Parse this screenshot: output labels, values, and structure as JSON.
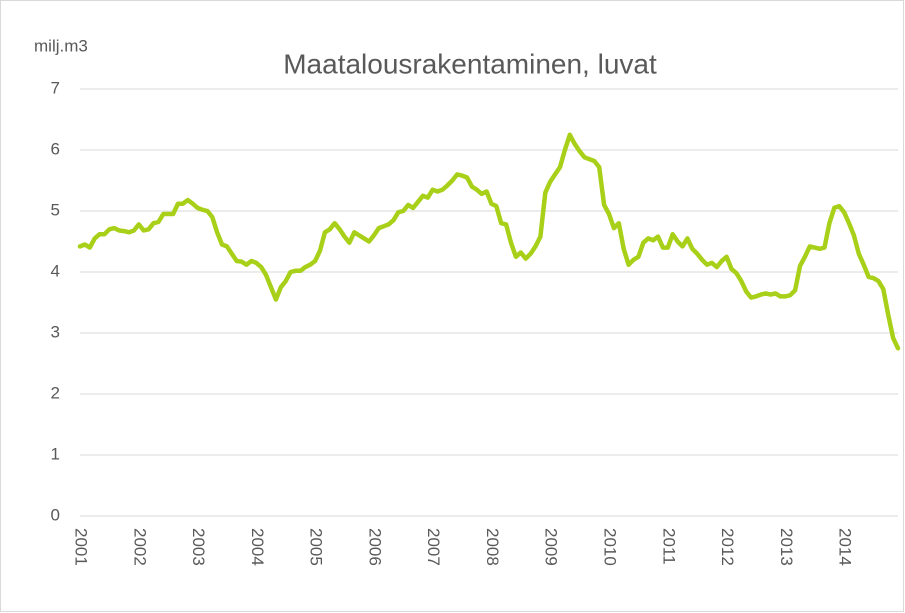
{
  "chart_data": {
    "type": "line",
    "title": "Maatalousrakentaminen, luvat",
    "y_label": "milj.m3",
    "categories": [
      "2001",
      null,
      null,
      null,
      null,
      null,
      null,
      null,
      null,
      null,
      null,
      null,
      "2002",
      null,
      null,
      null,
      null,
      null,
      null,
      null,
      null,
      null,
      null,
      null,
      "2003",
      null,
      null,
      null,
      null,
      null,
      null,
      null,
      null,
      null,
      null,
      null,
      "2004",
      null,
      null,
      null,
      null,
      null,
      null,
      null,
      null,
      null,
      null,
      null,
      "2005",
      null,
      null,
      null,
      null,
      null,
      null,
      null,
      null,
      null,
      null,
      null,
      "2006",
      null,
      null,
      null,
      null,
      null,
      null,
      null,
      null,
      null,
      null,
      null,
      "2007",
      null,
      null,
      null,
      null,
      null,
      null,
      null,
      null,
      null,
      null,
      null,
      "2008",
      null,
      null,
      null,
      null,
      null,
      null,
      null,
      null,
      null,
      null,
      null,
      "2009",
      null,
      null,
      null,
      null,
      null,
      null,
      null,
      null,
      null,
      null,
      null,
      "2010",
      null,
      null,
      null,
      null,
      null,
      null,
      null,
      null,
      null,
      null,
      null,
      "2011",
      null,
      null,
      null,
      null,
      null,
      null,
      null,
      null,
      null,
      null,
      null,
      "2012",
      null,
      null,
      null,
      null,
      null,
      null,
      null,
      null,
      null,
      null,
      null,
      "2013",
      null,
      null,
      null,
      null,
      null,
      null,
      null,
      null,
      null,
      null,
      null,
      "2014",
      null,
      null,
      null,
      null,
      null,
      null,
      null,
      null,
      null,
      null,
      null
    ],
    "series": [
      {
        "name": "Maatalousrakentaminen, luvat",
        "color": "#a9d018",
        "values": [
          4.42,
          4.45,
          4.4,
          4.55,
          4.62,
          4.62,
          4.7,
          4.72,
          4.68,
          4.67,
          4.65,
          4.68,
          4.78,
          4.68,
          4.7,
          4.8,
          4.82,
          4.95,
          4.95,
          4.95,
          5.12,
          5.12,
          5.18,
          5.12,
          5.05,
          5.02,
          5.0,
          4.9,
          4.65,
          4.45,
          4.42,
          4.3,
          4.18,
          4.17,
          4.12,
          4.18,
          4.15,
          4.08,
          3.95,
          3.75,
          3.55,
          3.75,
          3.85,
          4.0,
          4.02,
          4.02,
          4.08,
          4.12,
          4.18,
          4.35,
          4.65,
          4.7,
          4.8,
          4.7,
          4.58,
          4.48,
          4.65,
          4.6,
          4.55,
          4.5,
          4.6,
          4.72,
          4.75,
          4.78,
          4.85,
          4.98,
          5.0,
          5.1,
          5.05,
          5.15,
          5.25,
          5.22,
          5.35,
          5.32,
          5.35,
          5.42,
          5.5,
          5.6,
          5.58,
          5.55,
          5.4,
          5.35,
          5.28,
          5.32,
          5.12,
          5.08,
          4.8,
          4.78,
          4.48,
          4.25,
          4.32,
          4.22,
          4.3,
          4.42,
          4.58,
          5.3,
          5.48,
          5.6,
          5.72,
          6.0,
          6.25,
          6.1,
          5.98,
          5.88,
          5.85,
          5.82,
          5.72,
          5.1,
          4.95,
          4.72,
          4.8,
          4.38,
          4.12,
          4.2,
          4.25,
          4.48,
          4.55,
          4.52,
          4.58,
          4.4,
          4.4,
          4.62,
          4.5,
          4.42,
          4.55,
          4.38,
          4.3,
          4.2,
          4.12,
          4.15,
          4.08,
          4.18,
          4.25,
          4.05,
          3.98,
          3.85,
          3.68,
          3.58,
          3.6,
          3.63,
          3.65,
          3.63,
          3.65,
          3.6,
          3.6,
          3.62,
          3.7,
          4.1,
          4.25,
          4.42,
          4.4,
          4.38,
          4.4,
          4.8,
          5.05,
          5.08,
          4.98,
          4.8,
          4.6,
          4.3,
          4.12,
          3.92,
          3.9,
          3.85,
          3.72,
          3.3,
          2.92,
          2.75
        ]
      }
    ],
    "ylim": [
      0,
      7
    ],
    "yticks": [
      0,
      1,
      2,
      3,
      4,
      5,
      6,
      7
    ],
    "grid": true
  }
}
